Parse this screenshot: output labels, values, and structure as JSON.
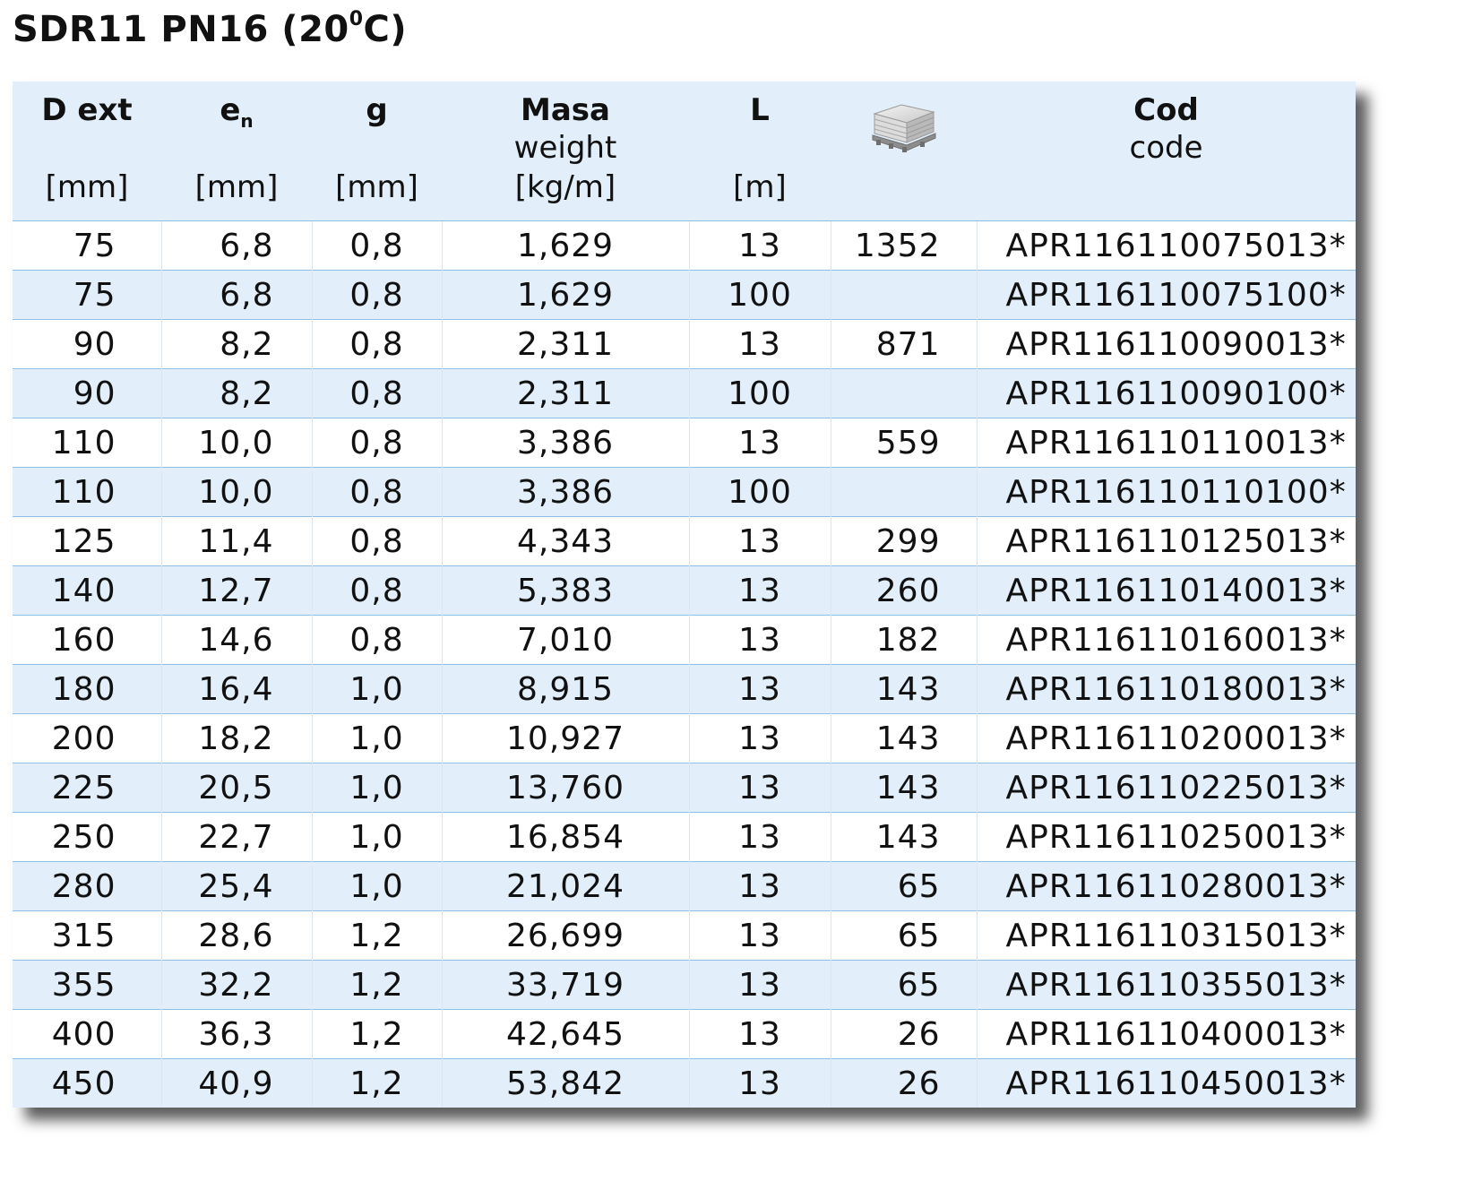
{
  "title": {
    "text": "SDR11 PN16 (20",
    "sup": "0",
    "suffix": "C)"
  },
  "headers": [
    {
      "main": "D ext",
      "sub": "",
      "unit": "[mm]"
    },
    {
      "main": "e",
      "main_sub": "n",
      "sub": "",
      "unit": "[mm]"
    },
    {
      "main": "g",
      "sub": "",
      "unit": "[mm]"
    },
    {
      "main": "Masa",
      "sub": "weight",
      "unit": "[kg/m]"
    },
    {
      "main": "L",
      "sub": "",
      "unit": "[m]"
    },
    {
      "icon": "pallet-icon"
    },
    {
      "main": "Cod",
      "sub": "code",
      "unit": ""
    }
  ],
  "rows": [
    [
      "75",
      "6,8",
      "0,8",
      "1,629",
      "13",
      "1352",
      "APR116110075013*"
    ],
    [
      "75",
      "6,8",
      "0,8",
      "1,629",
      "100",
      "",
      "APR116110075100*"
    ],
    [
      "90",
      "8,2",
      "0,8",
      "2,311",
      "13",
      "871",
      "APR116110090013*"
    ],
    [
      "90",
      "8,2",
      "0,8",
      "2,311",
      "100",
      "",
      "APR116110090100*"
    ],
    [
      "110",
      "10,0",
      "0,8",
      "3,386",
      "13",
      "559",
      "APR116110110013*"
    ],
    [
      "110",
      "10,0",
      "0,8",
      "3,386",
      "100",
      "",
      "APR116110110100*"
    ],
    [
      "125",
      "11,4",
      "0,8",
      "4,343",
      "13",
      "299",
      "APR116110125013*"
    ],
    [
      "140",
      "12,7",
      "0,8",
      "5,383",
      "13",
      "260",
      "APR116110140013*"
    ],
    [
      "160",
      "14,6",
      "0,8",
      "7,010",
      "13",
      "182",
      "APR116110160013*"
    ],
    [
      "180",
      "16,4",
      "1,0",
      "8,915",
      "13",
      "143",
      "APR116110180013*"
    ],
    [
      "200",
      "18,2",
      "1,0",
      "10,927",
      "13",
      "143",
      "APR116110200013*"
    ],
    [
      "225",
      "20,5",
      "1,0",
      "13,760",
      "13",
      "143",
      "APR116110225013*"
    ],
    [
      "250",
      "22,7",
      "1,0",
      "16,854",
      "13",
      "143",
      "APR116110250013*"
    ],
    [
      "280",
      "25,4",
      "1,0",
      "21,024",
      "13",
      "65",
      "APR116110280013*"
    ],
    [
      "315",
      "28,6",
      "1,2",
      "26,699",
      "13",
      "65",
      "APR116110315013*"
    ],
    [
      "355",
      "32,2",
      "1,2",
      "33,719",
      "13",
      "65",
      "APR116110355013*"
    ],
    [
      "400",
      "36,3",
      "1,2",
      "42,645",
      "13",
      "26",
      "APR116110400013*"
    ],
    [
      "450",
      "40,9",
      "1,2",
      "53,842",
      "13",
      "26",
      "APR116110450013*"
    ]
  ],
  "colors": {
    "header_bg": "#e2eef9",
    "alt_row_bg": "#e2eef9",
    "row_border": "#8fbde3"
  }
}
